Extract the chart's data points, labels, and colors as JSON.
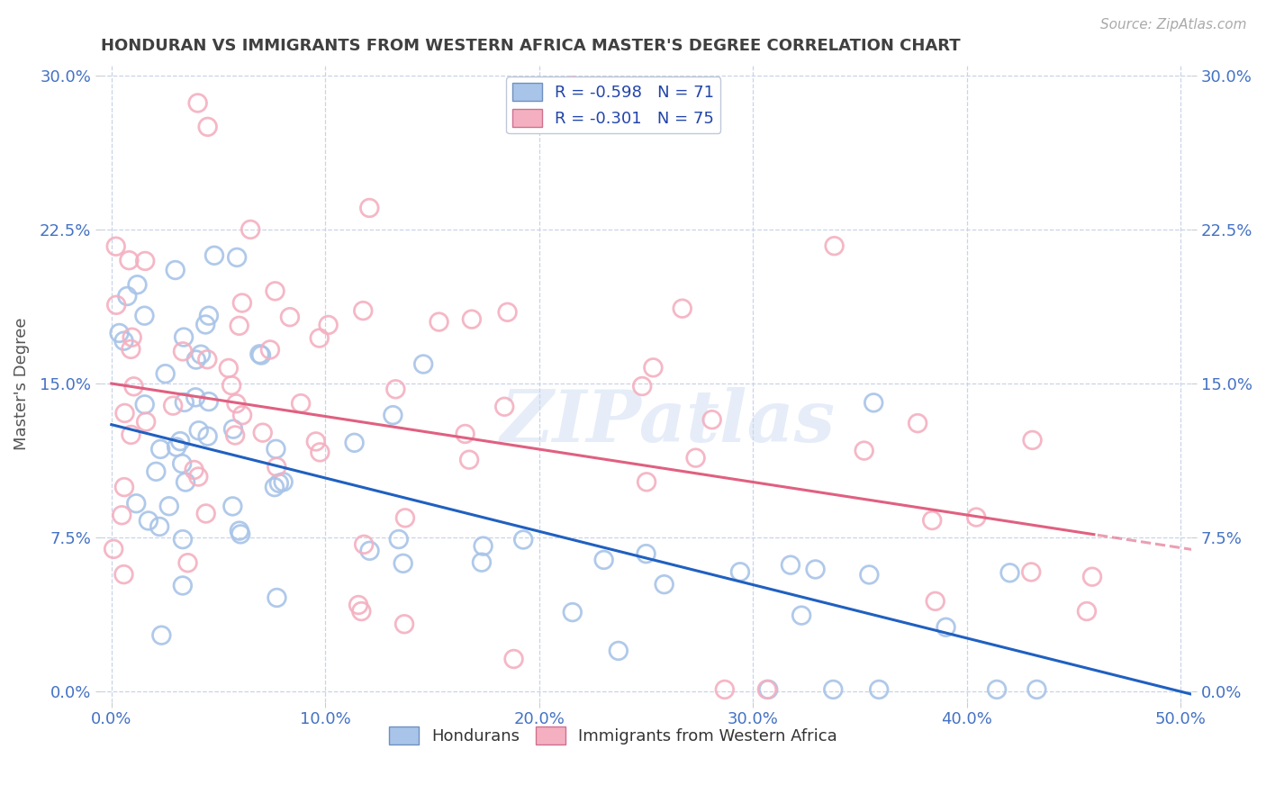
{
  "title": "HONDURAN VS IMMIGRANTS FROM WESTERN AFRICA MASTER'S DEGREE CORRELATION CHART",
  "source": "Source: ZipAtlas.com",
  "xlabel_ticks": [
    "0.0%",
    "10.0%",
    "20.0%",
    "30.0%",
    "40.0%",
    "50.0%"
  ],
  "xlabel_vals": [
    0.0,
    0.1,
    0.2,
    0.3,
    0.4,
    0.5
  ],
  "ylabel": "Master's Degree",
  "ylabel_ticks": [
    "0.0%",
    "7.5%",
    "15.0%",
    "22.5%",
    "30.0%"
  ],
  "ylabel_vals": [
    0.0,
    0.075,
    0.15,
    0.225,
    0.3
  ],
  "xlim": [
    -0.005,
    0.505
  ],
  "ylim": [
    -0.005,
    0.305
  ],
  "watermark": "ZIPatlas",
  "legend_blue_label": "R = -0.598   N = 71",
  "legend_pink_label": "R = -0.301   N = 75",
  "legend_bottom_blue": "Hondurans",
  "legend_bottom_pink": "Immigrants from Western Africa",
  "blue_color": "#a8c4e8",
  "pink_color": "#f4b0c0",
  "blue_line_color": "#2060c0",
  "pink_line_color": "#e06080",
  "background_color": "#ffffff",
  "grid_color": "#c8d4e8",
  "title_color": "#404040",
  "axis_label_color": "#4472c4",
  "blue_intercept": 0.13,
  "blue_slope": -0.26,
  "pink_intercept": 0.15,
  "pink_slope": -0.16,
  "blue_R": -0.598,
  "blue_N": 71,
  "pink_R": -0.301,
  "pink_N": 75
}
